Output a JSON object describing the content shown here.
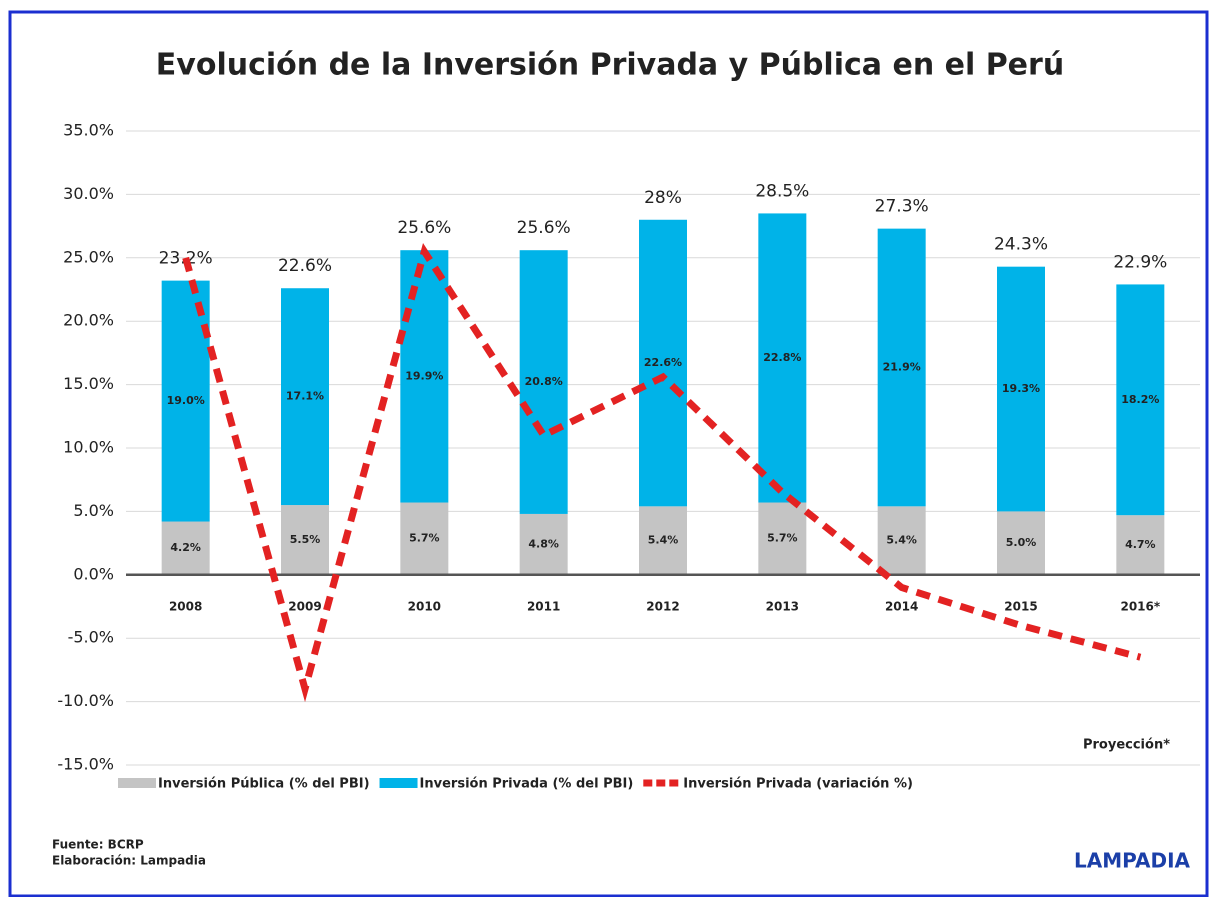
{
  "chart_data": {
    "type": "bar",
    "stacked": true,
    "title": "Evolución de la Inversión Privada y Pública en el Perú",
    "categories": [
      "2008",
      "2009",
      "2010",
      "2011",
      "2012",
      "2013",
      "2014",
      "2015",
      "2016*"
    ],
    "series": [
      {
        "name": "Inversión Pública (% del PBI)",
        "color": "#c4c4c4",
        "values": [
          4.2,
          5.5,
          5.7,
          4.8,
          5.4,
          5.7,
          5.4,
          5.0,
          4.7
        ],
        "value_labels": [
          "4.2%",
          "5.5%",
          "5.7%",
          "4.8%",
          "5.4%",
          "5.7%",
          "5.4%",
          "5.0%",
          "4.7%"
        ]
      },
      {
        "name": "Inversión Privada (% del PBI)",
        "color": "#00b3e8",
        "values": [
          19.0,
          17.1,
          19.9,
          20.8,
          22.6,
          22.8,
          21.9,
          19.3,
          18.2
        ],
        "value_labels": [
          "19.0%",
          "17.1%",
          "19.9%",
          "20.8%",
          "22.6%",
          "22.8%",
          "21.9%",
          "19.3%",
          "18.2%"
        ]
      },
      {
        "name": "Inversión Privada (variación %)",
        "color": "#e32222",
        "type": "line",
        "values": [
          25.0,
          -9.0,
          25.5,
          11.0,
          15.6,
          6.5,
          -1.0,
          -4.0,
          -6.5
        ]
      }
    ],
    "total_labels": [
      "23.2%",
      "22.6%",
      "25.6%",
      "25.6%",
      "28%",
      "28.5%",
      "27.3%",
      "24.3%",
      "22.9%"
    ],
    "ylim": [
      -15,
      35
    ],
    "yticks": [
      {
        "value": -15,
        "label": "-15.0%"
      },
      {
        "value": -10,
        "label": "-10.0%"
      },
      {
        "value": -5,
        "label": "-5.0%"
      },
      {
        "value": 0,
        "label": "0.0%"
      },
      {
        "value": 5,
        "label": "5.0%"
      },
      {
        "value": 10,
        "label": "10.0%"
      },
      {
        "value": 15,
        "label": "15.0%"
      },
      {
        "value": 20,
        "label": "20.0%"
      },
      {
        "value": 25,
        "label": "25.0%"
      },
      {
        "value": 30,
        "label": "30.0%"
      },
      {
        "value": 35,
        "label": "35.0%"
      }
    ],
    "grid": true,
    "note": "Proyección*",
    "source": "Fuente: BCRP",
    "credit": "Elaboración: Lampadia",
    "logo": "LAMPADIA"
  }
}
